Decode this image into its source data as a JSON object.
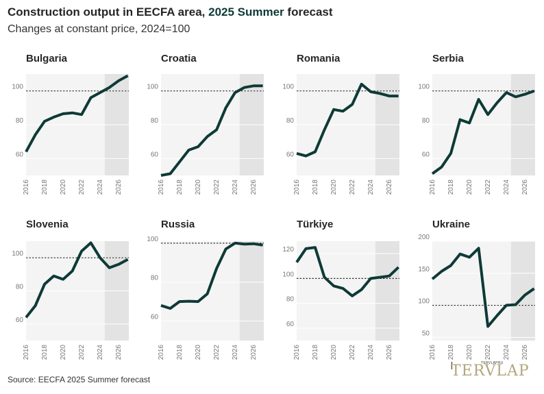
{
  "title_main": "Construction output in EECFA area, ",
  "title_em": "2025 Summer",
  "title_tail": " forecast",
  "subtitle": "Changes at constant price, 2024=100",
  "source": "Source: EECFA 2025 Summer forecast",
  "logo": {
    "small": "TERVLAPHU",
    "big": "TERVLAP"
  },
  "colors": {
    "line": "#0e3a36",
    "plot_bg": "#f4f4f4",
    "forecast_bg": "#e3e3e3",
    "reference": "#333333",
    "title_accent": "#0e3a36"
  },
  "chart_data": [
    {
      "type": "line",
      "title": "Bulgaria",
      "x": [
        2016,
        2017,
        2018,
        2019,
        2020,
        2021,
        2022,
        2023,
        2024,
        2025,
        2026,
        2027
      ],
      "values": [
        64,
        74,
        82,
        84.5,
        86.5,
        87,
        86,
        96,
        99,
        102,
        106,
        109
      ],
      "xticks": [
        2016,
        2018,
        2020,
        2022,
        2024,
        2026
      ],
      "yticks": [
        60,
        80,
        100
      ],
      "ylim": [
        50,
        110
      ],
      "forecast_from": 2024.5,
      "reference": 100
    },
    {
      "type": "line",
      "title": "Croatia",
      "x": [
        2016,
        2017,
        2018,
        2019,
        2020,
        2021,
        2022,
        2023,
        2024,
        2025,
        2026,
        2027
      ],
      "values": [
        50,
        51,
        58,
        65,
        67,
        73,
        77,
        90,
        99,
        102,
        103,
        103
      ],
      "xticks": [
        2016,
        2018,
        2020,
        2022,
        2024,
        2026
      ],
      "yticks": [
        60,
        80,
        100
      ],
      "ylim": [
        50,
        110
      ],
      "forecast_from": 2024.5,
      "reference": 100
    },
    {
      "type": "line",
      "title": "Romania",
      "x": [
        2016,
        2017,
        2018,
        2019,
        2020,
        2021,
        2022,
        2023,
        2024,
        2025,
        2026,
        2027
      ],
      "values": [
        63,
        61.5,
        64,
        77,
        89,
        88,
        92,
        104,
        99.5,
        98.5,
        97,
        97
      ],
      "xticks": [
        2016,
        2018,
        2020,
        2022,
        2024,
        2026
      ],
      "yticks": [
        60,
        80,
        100
      ],
      "ylim": [
        50,
        110
      ],
      "forecast_from": 2024.5,
      "reference": 100
    },
    {
      "type": "line",
      "title": "Serbia",
      "x": [
        2016,
        2017,
        2018,
        2019,
        2020,
        2021,
        2022,
        2023,
        2024,
        2025,
        2026,
        2027
      ],
      "values": [
        51,
        55,
        63,
        83,
        81,
        95,
        86,
        93,
        99,
        96.5,
        98,
        100
      ],
      "xticks": [
        2016,
        2018,
        2020,
        2022,
        2024,
        2026
      ],
      "yticks": [
        60,
        80,
        100
      ],
      "ylim": [
        50,
        110
      ],
      "forecast_from": 2024.5,
      "reference": 100
    },
    {
      "type": "line",
      "title": "Slovenia",
      "x": [
        2016,
        2017,
        2018,
        2019,
        2020,
        2021,
        2022,
        2023,
        2024,
        2025,
        2026,
        2027
      ],
      "values": [
        64,
        71,
        84,
        89,
        87,
        92,
        104,
        109,
        100,
        94,
        96,
        99
      ],
      "xticks": [
        2016,
        2018,
        2020,
        2022,
        2024,
        2026
      ],
      "yticks": [
        60,
        80,
        100
      ],
      "ylim": [
        50,
        110
      ],
      "forecast_from": 2024.5,
      "reference": 100
    },
    {
      "type": "line",
      "title": "Russia",
      "x": [
        2016,
        2017,
        2018,
        2019,
        2020,
        2021,
        2022,
        2023,
        2024,
        2025,
        2026,
        2027
      ],
      "values": [
        68,
        66.5,
        70,
        70.2,
        70,
        74,
        87,
        97,
        100,
        99.5,
        99.7,
        99
      ],
      "xticks": [
        2016,
        2018,
        2020,
        2022,
        2024,
        2026
      ],
      "yticks": [
        60,
        80,
        100
      ],
      "ylim": [
        50,
        101
      ],
      "forecast_from": 2024.5,
      "reference": 100
    },
    {
      "type": "line",
      "title": "Türkiye",
      "x": [
        2016,
        2017,
        2018,
        2019,
        2020,
        2021,
        2022,
        2023,
        2024,
        2025,
        2026,
        2027
      ],
      "values": [
        113,
        124,
        125,
        101,
        94,
        92,
        86,
        91,
        100,
        101,
        102,
        109
      ],
      "xticks": [
        2016,
        2018,
        2020,
        2022,
        2024,
        2026
      ],
      "yticks": [
        60,
        80,
        100,
        120
      ],
      "ylim": [
        50,
        130
      ],
      "forecast_from": 2024.5,
      "reference": 100
    },
    {
      "type": "line",
      "title": "Ukraine",
      "x": [
        2016,
        2017,
        2018,
        2019,
        2020,
        2021,
        2022,
        2023,
        2024,
        2025,
        2026,
        2027
      ],
      "values": [
        141,
        153,
        162,
        180,
        175,
        189,
        67,
        84,
        100,
        101,
        116,
        126
      ],
      "xticks": [
        2016,
        2018,
        2020,
        2022,
        2024,
        2026
      ],
      "yticks": [
        50,
        100,
        150,
        200
      ],
      "ylim": [
        45,
        200
      ],
      "forecast_from": 2024.5,
      "reference": 100
    }
  ]
}
